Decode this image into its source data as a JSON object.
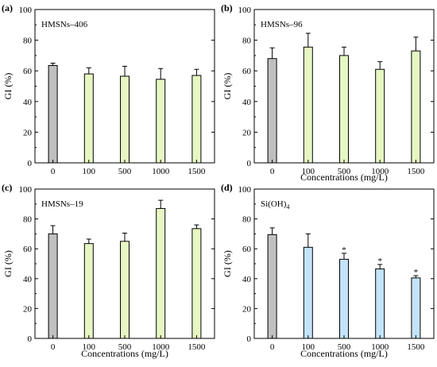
{
  "chart_data": [
    {
      "type": "bar",
      "panel_label": "(a)",
      "annotation": "HMSNs–406",
      "ylabel": "GI (%)",
      "xlabel": "",
      "categories": [
        "0",
        "100",
        "500",
        "1000",
        "1500"
      ],
      "values": [
        63.5,
        58,
        56.5,
        54.5,
        57
      ],
      "errors": [
        1.5,
        4,
        6.5,
        7,
        4
      ],
      "significance": [
        "",
        "",
        "",
        "",
        ""
      ],
      "ylim": [
        0,
        100
      ],
      "yticks": [
        "0",
        "20",
        "40",
        "60",
        "80",
        "100"
      ],
      "colors": [
        "#c0c0c0",
        "#e7f7c3",
        "#e7f7c3",
        "#e7f7c3",
        "#e7f7c3"
      ]
    },
    {
      "type": "bar",
      "panel_label": "(b)",
      "annotation": "HMSNs–96",
      "ylabel": "GI (%)",
      "xlabel": "Concentrations (mg/L)",
      "categories": [
        "0",
        "100",
        "500",
        "1000",
        "1500"
      ],
      "values": [
        68,
        75.5,
        70,
        61,
        73
      ],
      "errors": [
        7,
        9,
        5.5,
        5,
        9
      ],
      "significance": [
        "",
        "",
        "",
        "",
        ""
      ],
      "ylim": [
        0,
        100
      ],
      "yticks": [
        "0",
        "20",
        "40",
        "60",
        "80",
        "100"
      ],
      "colors": [
        "#c0c0c0",
        "#e7f7c3",
        "#e7f7c3",
        "#e7f7c3",
        "#e7f7c3"
      ]
    },
    {
      "type": "bar",
      "panel_label": "(c)",
      "annotation": "HMSNs–19",
      "ylabel": "GI (%)",
      "xlabel": "Concentrations (mg/L)",
      "categories": [
        "0",
        "100",
        "500",
        "1000",
        "1500"
      ],
      "values": [
        70,
        63.5,
        65,
        87,
        73.5
      ],
      "errors": [
        5.5,
        3,
        5.5,
        5.5,
        2.5
      ],
      "significance": [
        "",
        "",
        "",
        "",
        ""
      ],
      "ylim": [
        0,
        100
      ],
      "yticks": [
        "0",
        "20",
        "40",
        "60",
        "80",
        "100"
      ],
      "colors": [
        "#c0c0c0",
        "#e7f7c3",
        "#e7f7c3",
        "#e7f7c3",
        "#e7f7c3"
      ]
    },
    {
      "type": "bar",
      "panel_label": "(d)",
      "annotation": "Si(OH)",
      "annotation_sub": "4",
      "ylabel": "GI (%)",
      "xlabel": "Concentrations (mg/L)",
      "categories": [
        "0",
        "100",
        "500",
        "1000",
        "1500"
      ],
      "values": [
        69.5,
        61,
        53,
        46.5,
        40.5
      ],
      "errors": [
        4.5,
        9,
        4,
        3,
        1.5
      ],
      "significance": [
        "",
        "",
        "*",
        "*",
        "*"
      ],
      "ylim": [
        0,
        100
      ],
      "yticks": [
        "0",
        "20",
        "40",
        "60",
        "80",
        "100"
      ],
      "colors": [
        "#c0c0c0",
        "#c3e4fb",
        "#c3e4fb",
        "#c3e4fb",
        "#c3e4fb"
      ]
    }
  ]
}
